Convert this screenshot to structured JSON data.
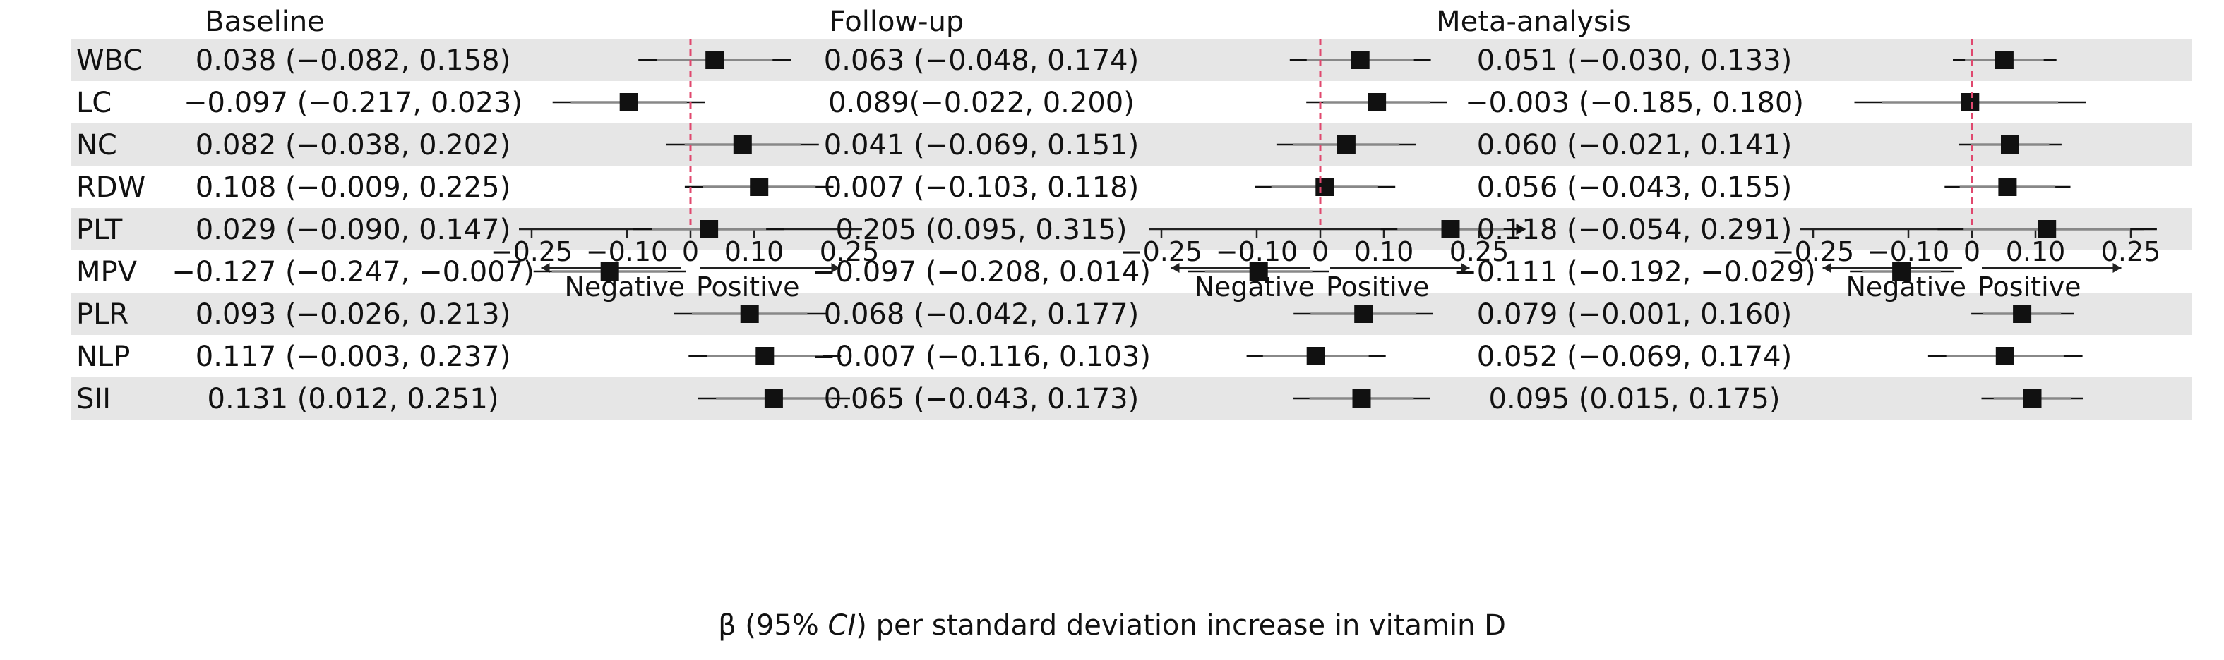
{
  "chart_data": {
    "type": "forest",
    "xlabel_prefix": "β (95% ",
    "xlabel_italic": "CI",
    "xlabel_suffix": ") per standard deviation increase in vitamin D",
    "direction_labels": {
      "negative": "Negative",
      "positive": "Positive"
    },
    "xlim": [
      -0.36,
      0.36
    ],
    "xticks": [
      -0.25,
      -0.1,
      0,
      0.1,
      0.25
    ],
    "xtick_labels": [
      "−0.25",
      "−0.10",
      "0",
      "0.10",
      "0.25"
    ],
    "row_labels": [
      "WBC",
      "LC",
      "NC",
      "RDW",
      "PLT",
      "MPV",
      "PLR",
      "NLP",
      "SII"
    ],
    "panels": [
      {
        "title": "Baseline",
        "rows": [
          {
            "label": "WBC",
            "estimate": 0.038,
            "lower": -0.082,
            "upper": 0.158,
            "text": "0.038 (−0.082, 0.158)"
          },
          {
            "label": "LC",
            "estimate": -0.097,
            "lower": -0.217,
            "upper": 0.023,
            "text": "−0.097 (−0.217, 0.023)"
          },
          {
            "label": "NC",
            "estimate": 0.082,
            "lower": -0.038,
            "upper": 0.202,
            "text": "0.082 (−0.038, 0.202)"
          },
          {
            "label": "RDW",
            "estimate": 0.108,
            "lower": -0.009,
            "upper": 0.225,
            "text": "0.108 (−0.009, 0.225)"
          },
          {
            "label": "PLT",
            "estimate": 0.029,
            "lower": -0.09,
            "upper": 0.147,
            "text": "0.029 (−0.090, 0.147)"
          },
          {
            "label": "MPV",
            "estimate": -0.127,
            "lower": -0.247,
            "upper": -0.007,
            "text": "−0.127 (−0.247, −0.007)"
          },
          {
            "label": "PLR",
            "estimate": 0.093,
            "lower": -0.026,
            "upper": 0.213,
            "text": "0.093 (−0.026, 0.213)"
          },
          {
            "label": "NLP",
            "estimate": 0.117,
            "lower": -0.003,
            "upper": 0.237,
            "text": "0.117 (−0.003, 0.237)"
          },
          {
            "label": "SII",
            "estimate": 0.131,
            "lower": 0.012,
            "upper": 0.251,
            "text": "0.131 (0.012, 0.251)"
          }
        ]
      },
      {
        "title": "Follow-up",
        "rows": [
          {
            "label": "WBC",
            "estimate": 0.063,
            "lower": -0.048,
            "upper": 0.174,
            "text": "0.063 (−0.048, 0.174)"
          },
          {
            "label": "LC",
            "estimate": 0.089,
            "lower": -0.022,
            "upper": 0.2,
            "text": "0.089(−0.022, 0.200)"
          },
          {
            "label": "NC",
            "estimate": 0.041,
            "lower": -0.069,
            "upper": 0.151,
            "text": "0.041 (−0.069, 0.151)"
          },
          {
            "label": "RDW",
            "estimate": 0.007,
            "lower": -0.103,
            "upper": 0.118,
            "text": "0.007 (−0.103, 0.118)"
          },
          {
            "label": "PLT",
            "estimate": 0.205,
            "lower": 0.095,
            "upper": 0.315,
            "text": "0.205 (0.095, 0.315)"
          },
          {
            "label": "MPV",
            "estimate": -0.097,
            "lower": -0.208,
            "upper": 0.014,
            "text": "−0.097 (−0.208, 0.014)"
          },
          {
            "label": "PLR",
            "estimate": 0.068,
            "lower": -0.042,
            "upper": 0.177,
            "text": "0.068 (−0.042, 0.177)"
          },
          {
            "label": "NLP",
            "estimate": -0.007,
            "lower": -0.116,
            "upper": 0.103,
            "text": "−0.007 (−0.116, 0.103)"
          },
          {
            "label": "SII",
            "estimate": 0.065,
            "lower": -0.043,
            "upper": 0.173,
            "text": "0.065 (−0.043, 0.173)"
          }
        ]
      },
      {
        "title": "Meta-analysis",
        "rows": [
          {
            "label": "WBC",
            "estimate": 0.051,
            "lower": -0.03,
            "upper": 0.133,
            "text": "0.051 (−0.030, 0.133)"
          },
          {
            "label": "LC",
            "estimate": -0.003,
            "lower": -0.185,
            "upper": 0.18,
            "text": "−0.003 (−0.185, 0.180)"
          },
          {
            "label": "NC",
            "estimate": 0.06,
            "lower": -0.021,
            "upper": 0.141,
            "text": "0.060 (−0.021, 0.141)"
          },
          {
            "label": "RDW",
            "estimate": 0.056,
            "lower": -0.043,
            "upper": 0.155,
            "text": "0.056 (−0.043, 0.155)"
          },
          {
            "label": "PLT",
            "estimate": 0.118,
            "lower": -0.054,
            "upper": 0.291,
            "text": "0.118 (−0.054, 0.291)"
          },
          {
            "label": "MPV",
            "estimate": -0.111,
            "lower": -0.192,
            "upper": -0.029,
            "text": "−0.111 (−0.192, −0.029)"
          },
          {
            "label": "PLR",
            "estimate": 0.079,
            "lower": -0.001,
            "upper": 0.16,
            "text": "0.079 (−0.001, 0.160)"
          },
          {
            "label": "NLP",
            "estimate": 0.052,
            "lower": -0.069,
            "upper": 0.174,
            "text": "0.052 (−0.069, 0.174)"
          },
          {
            "label": "SII",
            "estimate": 0.095,
            "lower": 0.015,
            "upper": 0.175,
            "text": "0.095 (0.015, 0.175)"
          }
        ]
      }
    ],
    "colors": {
      "stripe": "#e6e6e6",
      "marker": "#111111",
      "ci_line": "#111111",
      "ci_overlap": "#888888",
      "null_line": "#e0486e",
      "axis": "#222222"
    }
  }
}
